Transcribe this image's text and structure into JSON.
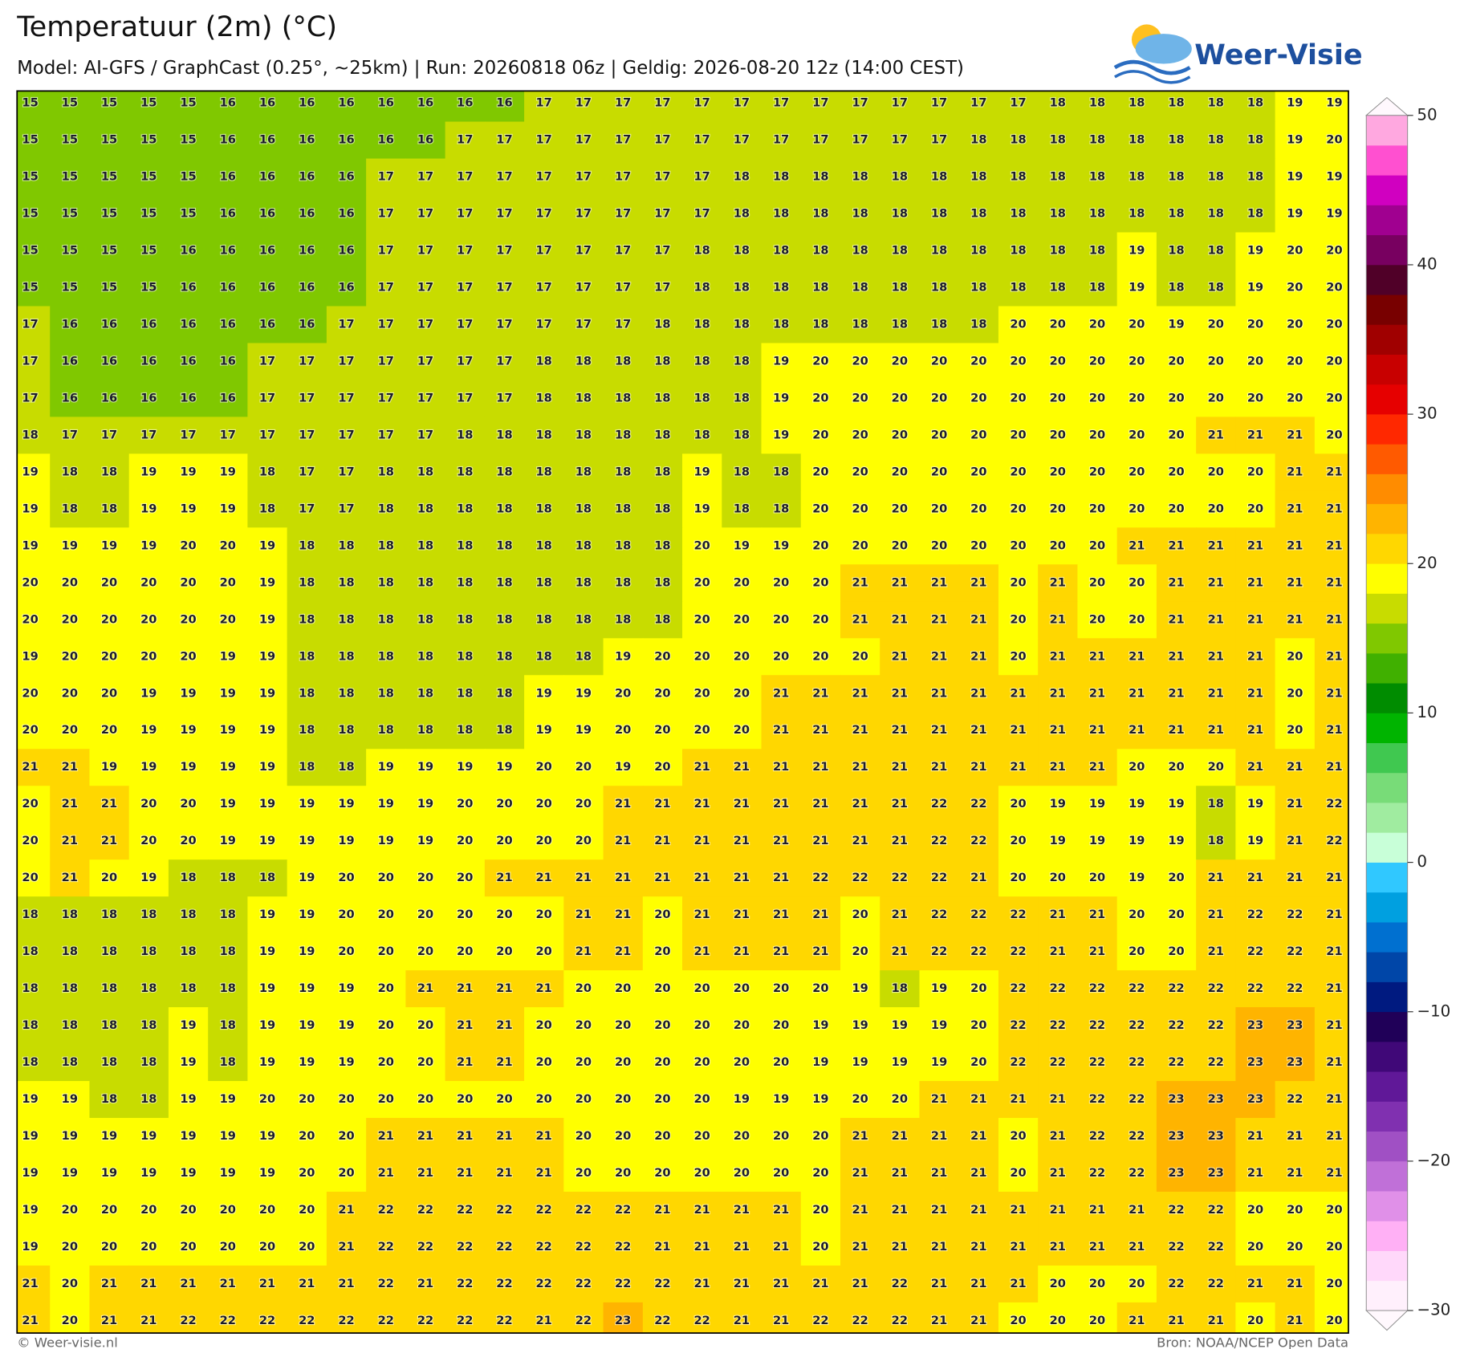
{
  "header": {
    "title": "Temperatuur (2m) (°C)",
    "subtitle": "Model: AI-GFS / GraphCast (0.25°, ~25km)  |  Run: 20260818 06z  |  Geldig: 2026-08-20 12z (14:00 CEST)",
    "logo": "Weer-Visie"
  },
  "map": {
    "values": [
      [
        15,
        15,
        15,
        15,
        15,
        16,
        16,
        16,
        16,
        16,
        16,
        16,
        16,
        17,
        17,
        17,
        17,
        17,
        17,
        17,
        17,
        17,
        17,
        17,
        17,
        17,
        18,
        18,
        18,
        18,
        18,
        18,
        19,
        19
      ],
      [
        15,
        15,
        15,
        15,
        15,
        16,
        16,
        16,
        16,
        16,
        16,
        17,
        17,
        17,
        17,
        17,
        17,
        17,
        17,
        17,
        17,
        17,
        17,
        17,
        18,
        18,
        18,
        18,
        18,
        18,
        18,
        18,
        19,
        20
      ],
      [
        15,
        15,
        15,
        15,
        15,
        16,
        16,
        16,
        16,
        17,
        17,
        17,
        17,
        17,
        17,
        17,
        17,
        17,
        18,
        18,
        18,
        18,
        18,
        18,
        18,
        18,
        18,
        18,
        18,
        18,
        18,
        18,
        19,
        19
      ],
      [
        15,
        15,
        15,
        15,
        15,
        16,
        16,
        16,
        16,
        17,
        17,
        17,
        17,
        17,
        17,
        17,
        17,
        17,
        18,
        18,
        18,
        18,
        18,
        18,
        18,
        18,
        18,
        18,
        18,
        18,
        18,
        18,
        19,
        19
      ],
      [
        15,
        15,
        15,
        15,
        16,
        16,
        16,
        16,
        16,
        17,
        17,
        17,
        17,
        17,
        17,
        17,
        17,
        18,
        18,
        18,
        18,
        18,
        18,
        18,
        18,
        18,
        18,
        18,
        19,
        18,
        18,
        19,
        20,
        20
      ],
      [
        15,
        15,
        15,
        15,
        16,
        16,
        16,
        16,
        16,
        17,
        17,
        17,
        17,
        17,
        17,
        17,
        17,
        18,
        18,
        18,
        18,
        18,
        18,
        18,
        18,
        18,
        18,
        18,
        19,
        18,
        18,
        19,
        20,
        20
      ],
      [
        17,
        16,
        16,
        16,
        16,
        16,
        16,
        16,
        17,
        17,
        17,
        17,
        17,
        17,
        17,
        17,
        18,
        18,
        18,
        18,
        18,
        18,
        18,
        18,
        18,
        20,
        20,
        20,
        20,
        19,
        20,
        20,
        20,
        20
      ],
      [
        17,
        16,
        16,
        16,
        16,
        16,
        17,
        17,
        17,
        17,
        17,
        17,
        17,
        18,
        18,
        18,
        18,
        18,
        18,
        19,
        20,
        20,
        20,
        20,
        20,
        20,
        20,
        20,
        20,
        20,
        20,
        20,
        20,
        20
      ],
      [
        17,
        16,
        16,
        16,
        16,
        16,
        17,
        17,
        17,
        17,
        17,
        17,
        17,
        18,
        18,
        18,
        18,
        18,
        18,
        19,
        20,
        20,
        20,
        20,
        20,
        20,
        20,
        20,
        20,
        20,
        20,
        20,
        20,
        20
      ],
      [
        18,
        17,
        17,
        17,
        17,
        17,
        17,
        17,
        17,
        17,
        17,
        18,
        18,
        18,
        18,
        18,
        18,
        18,
        18,
        19,
        20,
        20,
        20,
        20,
        20,
        20,
        20,
        20,
        20,
        20,
        21,
        21,
        21,
        20
      ],
      [
        19,
        18,
        18,
        19,
        19,
        19,
        18,
        17,
        17,
        18,
        18,
        18,
        18,
        18,
        18,
        18,
        18,
        19,
        18,
        18,
        20,
        20,
        20,
        20,
        20,
        20,
        20,
        20,
        20,
        20,
        20,
        20,
        21,
        21
      ],
      [
        19,
        18,
        18,
        19,
        19,
        19,
        18,
        17,
        17,
        18,
        18,
        18,
        18,
        18,
        18,
        18,
        18,
        19,
        18,
        18,
        20,
        20,
        20,
        20,
        20,
        20,
        20,
        20,
        20,
        20,
        20,
        20,
        21,
        21
      ],
      [
        19,
        19,
        19,
        19,
        20,
        20,
        19,
        18,
        18,
        18,
        18,
        18,
        18,
        18,
        18,
        18,
        18,
        20,
        19,
        19,
        20,
        20,
        20,
        20,
        20,
        20,
        20,
        20,
        21,
        21,
        21,
        21,
        21,
        21
      ],
      [
        20,
        20,
        20,
        20,
        20,
        20,
        19,
        18,
        18,
        18,
        18,
        18,
        18,
        18,
        18,
        18,
        18,
        20,
        20,
        20,
        20,
        21,
        21,
        21,
        21,
        20,
        21,
        20,
        20,
        21,
        21,
        21,
        21,
        21
      ],
      [
        20,
        20,
        20,
        20,
        20,
        20,
        19,
        18,
        18,
        18,
        18,
        18,
        18,
        18,
        18,
        18,
        18,
        20,
        20,
        20,
        20,
        21,
        21,
        21,
        21,
        20,
        21,
        20,
        20,
        21,
        21,
        21,
        21,
        21
      ],
      [
        19,
        20,
        20,
        20,
        20,
        19,
        19,
        18,
        18,
        18,
        18,
        18,
        18,
        18,
        18,
        19,
        20,
        20,
        20,
        20,
        20,
        20,
        21,
        21,
        21,
        20,
        21,
        21,
        21,
        21,
        21,
        21,
        20,
        21
      ],
      [
        20,
        20,
        20,
        19,
        19,
        19,
        19,
        18,
        18,
        18,
        18,
        18,
        18,
        19,
        19,
        20,
        20,
        20,
        20,
        21,
        21,
        21,
        21,
        21,
        21,
        21,
        21,
        21,
        21,
        21,
        21,
        21,
        20,
        21
      ],
      [
        20,
        20,
        20,
        19,
        19,
        19,
        19,
        18,
        18,
        18,
        18,
        18,
        18,
        19,
        19,
        20,
        20,
        20,
        20,
        21,
        21,
        21,
        21,
        21,
        21,
        21,
        21,
        21,
        21,
        21,
        21,
        21,
        20,
        21
      ],
      [
        21,
        21,
        19,
        19,
        19,
        19,
        19,
        18,
        18,
        19,
        19,
        19,
        19,
        20,
        20,
        19,
        20,
        21,
        21,
        21,
        21,
        21,
        21,
        21,
        21,
        21,
        21,
        21,
        20,
        20,
        20,
        21,
        21,
        21
      ],
      [
        20,
        21,
        21,
        20,
        20,
        19,
        19,
        19,
        19,
        19,
        19,
        20,
        20,
        20,
        20,
        21,
        21,
        21,
        21,
        21,
        21,
        21,
        21,
        22,
        22,
        20,
        19,
        19,
        19,
        19,
        18,
        19,
        21,
        22
      ],
      [
        20,
        21,
        21,
        20,
        20,
        19,
        19,
        19,
        19,
        19,
        19,
        20,
        20,
        20,
        20,
        21,
        21,
        21,
        21,
        21,
        21,
        21,
        21,
        22,
        22,
        20,
        19,
        19,
        19,
        19,
        18,
        19,
        21,
        22
      ],
      [
        20,
        21,
        20,
        19,
        18,
        18,
        18,
        19,
        20,
        20,
        20,
        20,
        21,
        21,
        21,
        21,
        21,
        21,
        21,
        21,
        22,
        22,
        22,
        22,
        21,
        20,
        20,
        20,
        19,
        20,
        21,
        21,
        21,
        21
      ],
      [
        18,
        18,
        18,
        18,
        18,
        18,
        19,
        19,
        20,
        20,
        20,
        20,
        20,
        20,
        21,
        21,
        20,
        21,
        21,
        21,
        21,
        20,
        21,
        22,
        22,
        22,
        21,
        21,
        20,
        20,
        21,
        22,
        22,
        21
      ],
      [
        18,
        18,
        18,
        18,
        18,
        18,
        19,
        19,
        20,
        20,
        20,
        20,
        20,
        20,
        21,
        21,
        20,
        21,
        21,
        21,
        21,
        20,
        21,
        22,
        22,
        22,
        21,
        21,
        20,
        20,
        21,
        22,
        22,
        21
      ],
      [
        18,
        18,
        18,
        18,
        18,
        18,
        19,
        19,
        19,
        20,
        21,
        21,
        21,
        21,
        20,
        20,
        20,
        20,
        20,
        20,
        20,
        19,
        18,
        19,
        20,
        22,
        22,
        22,
        22,
        22,
        22,
        22,
        22,
        21
      ],
      [
        18,
        18,
        18,
        18,
        19,
        18,
        19,
        19,
        19,
        20,
        20,
        21,
        21,
        20,
        20,
        20,
        20,
        20,
        20,
        20,
        19,
        19,
        19,
        19,
        20,
        22,
        22,
        22,
        22,
        22,
        22,
        23,
        23,
        21
      ],
      [
        18,
        18,
        18,
        18,
        19,
        18,
        19,
        19,
        19,
        20,
        20,
        21,
        21,
        20,
        20,
        20,
        20,
        20,
        20,
        20,
        19,
        19,
        19,
        19,
        20,
        22,
        22,
        22,
        22,
        22,
        22,
        23,
        23,
        21
      ],
      [
        19,
        19,
        18,
        18,
        19,
        19,
        20,
        20,
        20,
        20,
        20,
        20,
        20,
        20,
        20,
        20,
        20,
        20,
        19,
        19,
        19,
        20,
        20,
        21,
        21,
        21,
        21,
        22,
        22,
        23,
        23,
        23,
        22,
        21
      ],
      [
        19,
        19,
        19,
        19,
        19,
        19,
        19,
        20,
        20,
        21,
        21,
        21,
        21,
        21,
        20,
        20,
        20,
        20,
        20,
        20,
        20,
        21,
        21,
        21,
        21,
        20,
        21,
        22,
        22,
        23,
        23,
        21,
        21,
        21
      ],
      [
        19,
        19,
        19,
        19,
        19,
        19,
        19,
        20,
        20,
        21,
        21,
        21,
        21,
        21,
        20,
        20,
        20,
        20,
        20,
        20,
        20,
        21,
        21,
        21,
        21,
        20,
        21,
        22,
        22,
        23,
        23,
        21,
        21,
        21
      ],
      [
        19,
        20,
        20,
        20,
        20,
        20,
        20,
        20,
        21,
        22,
        22,
        22,
        22,
        22,
        22,
        22,
        21,
        21,
        21,
        21,
        20,
        21,
        21,
        21,
        21,
        21,
        21,
        21,
        21,
        22,
        22,
        20,
        20,
        20
      ],
      [
        19,
        20,
        20,
        20,
        20,
        20,
        20,
        20,
        21,
        22,
        22,
        22,
        22,
        22,
        22,
        22,
        21,
        21,
        21,
        21,
        20,
        21,
        21,
        21,
        21,
        21,
        21,
        21,
        21,
        22,
        22,
        20,
        20,
        20
      ],
      [
        21,
        20,
        21,
        21,
        21,
        21,
        21,
        21,
        21,
        22,
        21,
        22,
        22,
        22,
        22,
        22,
        22,
        21,
        21,
        21,
        21,
        21,
        22,
        21,
        21,
        21,
        20,
        20,
        20,
        22,
        22,
        21,
        21,
        20
      ],
      [
        21,
        20,
        21,
        21,
        22,
        22,
        22,
        22,
        22,
        22,
        22,
        22,
        22,
        21,
        22,
        23,
        22,
        22,
        21,
        21,
        22,
        22,
        22,
        21,
        21,
        20,
        20,
        20,
        21,
        21,
        21,
        20,
        21,
        20
      ]
    ]
  },
  "colorbar": {
    "range": [
      -30,
      50
    ],
    "colors": [
      "#fff0fc",
      "#ffd8fa",
      "#ffb0f5",
      "#e090e8",
      "#c070d8",
      "#a050c4",
      "#8030b0",
      "#601898",
      "#400878",
      "#200058",
      "#001a80",
      "#0046a8",
      "#0070d0",
      "#00a0e0",
      "#30c8ff",
      "#c8ffd8",
      "#a0eca0",
      "#78dc78",
      "#40c850",
      "#00b400",
      "#008c00",
      "#40b000",
      "#80c800",
      "#c8dc00",
      "#ffff00",
      "#ffd700",
      "#ffb400",
      "#ff8c00",
      "#ff5a00",
      "#ff2800",
      "#e60000",
      "#c80000",
      "#a00000",
      "#780000",
      "#500028",
      "#780060",
      "#a00090",
      "#d000c0",
      "#ff50d0",
      "#ffa8e0"
    ],
    "ticks": [
      {
        "value": -30,
        "label": "−30"
      },
      {
        "value": -20,
        "label": "−20"
      },
      {
        "value": -10,
        "label": "−10"
      },
      0,
      10,
      20,
      30,
      40,
      50
    ]
  },
  "footer": {
    "left": "© Weer-visie.nl",
    "right": "Bron: NOAA/NCEP Open Data"
  }
}
